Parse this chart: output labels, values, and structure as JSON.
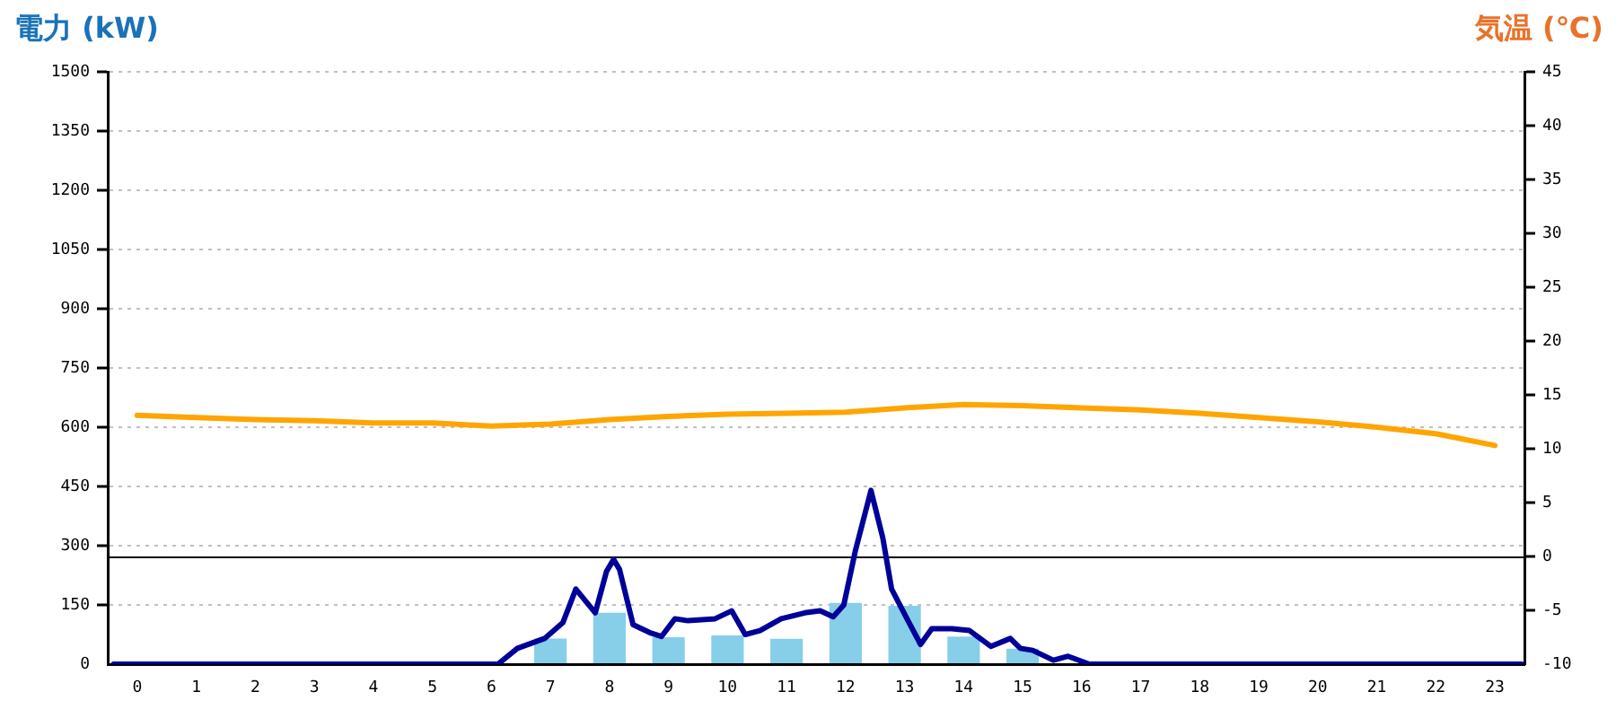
{
  "chart_data": {
    "type": "bar",
    "ylabel": "電力 (kW)",
    "y2label": "気温 (℃)",
    "x": [
      0,
      1,
      2,
      3,
      4,
      5,
      6,
      7,
      8,
      9,
      10,
      11,
      12,
      13,
      14,
      15,
      16,
      17,
      18,
      19,
      20,
      21,
      22,
      23
    ],
    "xlim": [
      -0.5,
      23.5
    ],
    "xticks": [
      0,
      1,
      2,
      3,
      4,
      5,
      6,
      7,
      8,
      9,
      10,
      11,
      12,
      13,
      14,
      15,
      16,
      17,
      18,
      19,
      20,
      21,
      22,
      23
    ],
    "series": [
      {
        "color": "#87cee9",
        "values": [
          0,
          0,
          0,
          0,
          0,
          0,
          0,
          65,
          130,
          68,
          73,
          64,
          155,
          148,
          70,
          39,
          0,
          0,
          0,
          0,
          0,
          0,
          0,
          0
        ]
      },
      {
        "type": "line",
        "color": "#000099",
        "x": [
          -0.4,
          6.11,
          6.44,
          6.9,
          7.21,
          7.43,
          7.76,
          7.95,
          8.07,
          8.17,
          8.4,
          8.68,
          8.88,
          9.11,
          9.33,
          9.79,
          10.07,
          10.3,
          10.55,
          10.91,
          11.31,
          11.57,
          11.79,
          11.97,
          12.17,
          12.43,
          12.63,
          12.78,
          13.04,
          13.27,
          13.46,
          13.8,
          14.1,
          14.46,
          14.79,
          14.96,
          15.17,
          15.52,
          15.77,
          16.13,
          23.45
        ],
        "values": [
          0,
          0,
          40,
          65,
          105,
          190,
          130,
          235,
          265,
          240,
          100,
          80,
          70,
          115,
          110,
          115,
          135,
          75,
          85,
          115,
          130,
          135,
          120,
          150,
          290,
          440,
          320,
          190,
          115,
          50,
          90,
          90,
          85,
          45,
          65,
          40,
          35,
          10,
          20,
          0,
          0
        ]
      },
      {
        "type": "line",
        "color": "#ffa500",
        "axis": "y2",
        "values": [
          13.1,
          12.9,
          12.7,
          12.6,
          12.4,
          12.4,
          12.1,
          12.3,
          12.7,
          13.0,
          13.2,
          13.3,
          13.4,
          13.8,
          14.1,
          14.0,
          13.8,
          13.6,
          13.3,
          12.9,
          12.5,
          12.0,
          11.4,
          10.3
        ]
      }
    ],
    "ylim": [
      0,
      1500
    ],
    "yticks": [
      0,
      150,
      300,
      450,
      600,
      750,
      900,
      1050,
      1200,
      1350,
      1500
    ],
    "y2lim": [
      -10,
      45
    ],
    "y2ticks": [
      -10,
      -5,
      0,
      5,
      10,
      15,
      20,
      25,
      30,
      35,
      40,
      45
    ],
    "ref_lines": [
      {
        "axis": "y2",
        "value": 0,
        "color": "#000000"
      }
    ],
    "grid": "y",
    "legend": false
  }
}
